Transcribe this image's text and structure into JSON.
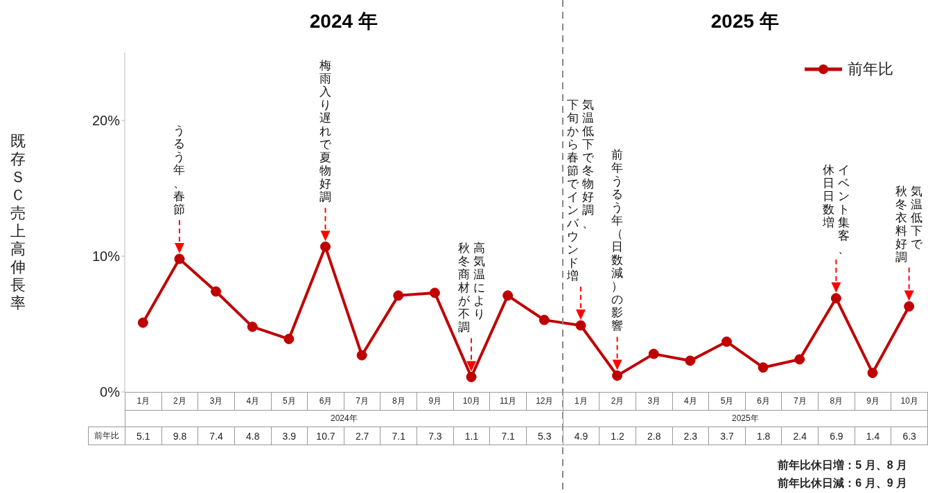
{
  "chart_data": {
    "type": "line",
    "ylabel": "既存ＳＣ売上高伸長率",
    "categories": [
      "1月",
      "2月",
      "3月",
      "4月",
      "5月",
      "6月",
      "7月",
      "8月",
      "9月",
      "10月",
      "11月",
      "12月",
      "1月",
      "2月",
      "3月",
      "4月",
      "5月",
      "6月",
      "7月",
      "8月",
      "9月",
      "10月"
    ],
    "series": [
      {
        "name": "前年比",
        "color": "#c00000",
        "values": [
          5.1,
          9.8,
          7.4,
          4.8,
          3.9,
          10.7,
          2.7,
          7.1,
          7.3,
          1.1,
          7.1,
          5.3,
          4.9,
          1.2,
          2.8,
          2.3,
          3.7,
          1.8,
          2.4,
          6.9,
          1.4,
          6.3
        ]
      }
    ],
    "ylim": [
      0,
      25
    ],
    "yticks": [
      {
        "value": 0,
        "label": "0%"
      },
      {
        "value": 10,
        "label": "10%"
      },
      {
        "value": 20,
        "label": "20%"
      }
    ],
    "data_labels": true,
    "legend": "top right",
    "marker": "circle",
    "line_style": "solid",
    "annotations": [
      "2024 年",
      "2025 年",
      "2024年",
      "2025年",
      "前年比休日増：5 月、8 月",
      "前年比休日減：6 月、9 月",
      "うるう年、春節",
      "梅雨入り遅れで夏物好調",
      "高気温により",
      "秋冬商材が不調",
      "気温低下で冬物好調、",
      "下旬から春節でインバウンド増",
      "前年うるう年（日数減）の影響",
      "イベント集客、",
      "休日日数増",
      "気温低下で",
      "秋冬衣料好調"
    ]
  }
}
